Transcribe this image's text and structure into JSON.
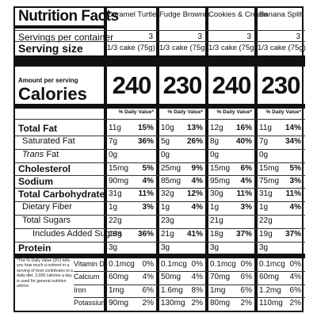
{
  "title": "Nutrition Facts",
  "servings_label": "Servings per container",
  "serving_size_label": "Serving size",
  "amount_per_serving": "Amount per serving",
  "calories_label": "Calories",
  "dv_header": "% Daily Value*",
  "footnote": "*The % Daily Value (DV) tells you how much a nutrient in a serving of food contributes to a daily diet. 2,000 calories a day is used for general nutrition advice.",
  "nutrients": [
    {
      "label": "Total Fat",
      "bold": true,
      "indent": 0
    },
    {
      "label": "Saturated Fat",
      "bold": false,
      "indent": 1
    },
    {
      "label": "Trans Fat",
      "bold": false,
      "indent": 1,
      "italic_prefix": "Trans",
      "suffix": " Fat"
    },
    {
      "label": "Cholesterol",
      "bold": true,
      "indent": 0
    },
    {
      "label": "Sodium",
      "bold": true,
      "indent": 0
    },
    {
      "label": "Total Carbohydrate",
      "bold": true,
      "indent": 0
    },
    {
      "label": "Dietary Fiber",
      "bold": false,
      "indent": 1
    },
    {
      "label": "Total Sugars",
      "bold": false,
      "indent": 1
    },
    {
      "label": "Includes Added Sugars",
      "bold": false,
      "indent": 2
    },
    {
      "label": "Protein",
      "bold": true,
      "indent": 0
    }
  ],
  "vitamins": [
    "Vitamin D",
    "Calcium",
    "Iron",
    "Potassium"
  ],
  "products": [
    {
      "name": "Caramel Turtle",
      "servings": "3",
      "serving_size": "1/3 cake (75g)",
      "calories": "240",
      "rows": [
        [
          "11g",
          "15%"
        ],
        [
          "7g",
          "36%"
        ],
        [
          "0g",
          ""
        ],
        [
          "15mg",
          "5%"
        ],
        [
          "90mg",
          "4%"
        ],
        [
          "31g",
          "11%"
        ],
        [
          "1g",
          "3%"
        ],
        [
          "22g",
          ""
        ],
        [
          "18g",
          "36%"
        ],
        [
          "3g",
          ""
        ]
      ],
      "vit": [
        [
          "0.1mcg",
          "0%"
        ],
        [
          "60mg",
          "4%"
        ],
        [
          "1mg",
          "6%"
        ],
        [
          "90mg",
          "2%"
        ]
      ]
    },
    {
      "name": "Fudge Brownie",
      "servings": "3",
      "serving_size": "1/3 cake (75g)",
      "calories": "230",
      "rows": [
        [
          "10g",
          "13%"
        ],
        [
          "5g",
          "26%"
        ],
        [
          "0g",
          ""
        ],
        [
          "25mg",
          "9%"
        ],
        [
          "85mg",
          "4%"
        ],
        [
          "32g",
          "12%"
        ],
        [
          "1g",
          "4%"
        ],
        [
          "23g",
          ""
        ],
        [
          "21g",
          "41%"
        ],
        [
          "3g",
          ""
        ]
      ],
      "vit": [
        [
          "0.1mcg",
          "0%"
        ],
        [
          "50mg",
          "4%"
        ],
        [
          "1.6mg",
          "8%"
        ],
        [
          "130mg",
          "2%"
        ]
      ]
    },
    {
      "name": "Cookies & Cream",
      "servings": "3",
      "serving_size": "1/3 cake (75g)",
      "calories": "240",
      "rows": [
        [
          "12g",
          "16%"
        ],
        [
          "8g",
          "40%"
        ],
        [
          "0g",
          ""
        ],
        [
          "15mg",
          "6%"
        ],
        [
          "95mg",
          "4%"
        ],
        [
          "30g",
          "11%"
        ],
        [
          "1g",
          "3%"
        ],
        [
          "21g",
          ""
        ],
        [
          "18g",
          "37%"
        ],
        [
          "3g",
          ""
        ]
      ],
      "vit": [
        [
          "0.1mcg",
          "0%"
        ],
        [
          "70mg",
          "6%"
        ],
        [
          "1mg",
          "6%"
        ],
        [
          "80mg",
          "2%"
        ]
      ]
    },
    {
      "name": "Banana Split",
      "servings": "3",
      "serving_size": "1/3 cake (75g)",
      "calories": "230",
      "rows": [
        [
          "11g",
          "14%"
        ],
        [
          "7g",
          "34%"
        ],
        [
          "0g",
          ""
        ],
        [
          "15mg",
          "5%"
        ],
        [
          "75mg",
          "3%"
        ],
        [
          "31g",
          "11%"
        ],
        [
          "1g",
          "4%"
        ],
        [
          "22g",
          ""
        ],
        [
          "19g",
          "37%"
        ],
        [
          "3g",
          ""
        ]
      ],
      "vit": [
        [
          "0.1mcg",
          "0%"
        ],
        [
          "60mg",
          "4%"
        ],
        [
          "1.2mg",
          "6%"
        ],
        [
          "110mg",
          "2%"
        ]
      ]
    }
  ]
}
